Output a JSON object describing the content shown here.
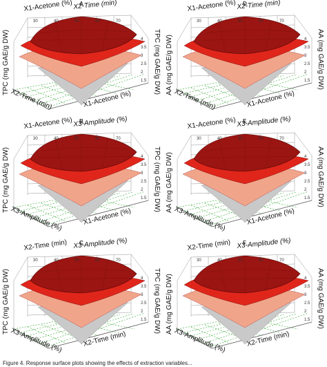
{
  "figure": {
    "panels": [
      {
        "letter": "A",
        "x1": "X1-Acetone",
        "x1_unit": "(%)",
        "x2": "X2-Time",
        "x2_unit": "(min)",
        "z_left": "TPC (mg GAE/g DW)",
        "z_right": "TPC (mg GAE/g DW)",
        "front_left": "X2-Time (min)",
        "front_right": "X1-Acetone (%)"
      },
      {
        "letter": "D",
        "x1": "X1-Acetone",
        "x1_unit": "(%)",
        "x2": "X2-Time",
        "x2_unit": "(min)",
        "z_left": "AA (mg GAE/g DW)",
        "z_right": "AA (mg GAE/g DW)",
        "front_left": "X2-Time (min)",
        "front_right": "X1-Acetone (%)"
      },
      {
        "letter": "B",
        "x1": "X1-Acetone",
        "x1_unit": "(%)",
        "x2": "X3-Amplitude",
        "x2_unit": "(%)",
        "z_left": "TPC (mg GAE/g DW)",
        "z_right": "TPC (mg GAE/g DW)",
        "front_left": "X3-Amplitude (%)",
        "front_right": "X1-Acetone (%)"
      },
      {
        "letter": "E",
        "x1": "X1-Acetone",
        "x1_unit": "(%)",
        "x2": "X3-Amplitude",
        "x2_unit": "(%)",
        "z_left": "AA (mg GAE/g DW)",
        "z_right": "AA (mg GAE/g DW)",
        "front_left": "X3-Amplitude (%)",
        "front_right": "X1-Acetone (%)"
      },
      {
        "letter": "C",
        "x1": "X2-Time",
        "x1_unit": "(min)",
        "x2": "X3-Amplitude",
        "x2_unit": "(%)",
        "z_left": "TPC (mg GAE/g DW)",
        "z_right": "TPC (mg GAE/g DW)",
        "front_left": "X3-Amplitude (%)",
        "front_right": "X2-Time (min)"
      },
      {
        "letter": "F",
        "x1": "X2-Time",
        "x1_unit": "(min)",
        "x2": "X3-Amplitude",
        "x2_unit": "(%)",
        "z_left": "AA (mg GAE/g DW)",
        "z_right": "AA (mg GAE/g DW)",
        "front_left": "X3-Amplitude (%)",
        "front_right": "X2-Time (min)"
      }
    ],
    "z_ticks_left": [
      "4",
      "3.5",
      "3",
      "2.5",
      "2",
      "1.5"
    ],
    "z_ticks_right": [
      "4",
      "3.5",
      "3",
      "2.5",
      "2",
      "1.5"
    ],
    "axis_ticks": [
      "30",
      "40",
      "50",
      "60",
      "70"
    ],
    "caption": "Figure 4. Response surface plots showing the effects of extraction variables..."
  },
  "colors": {
    "cap": "#9b1512",
    "upper": "#e0261b",
    "middle": "#f0a58a",
    "cone": "#c9c9c9",
    "grid": "#777777",
    "floor_grid": "#2fa52f"
  }
}
